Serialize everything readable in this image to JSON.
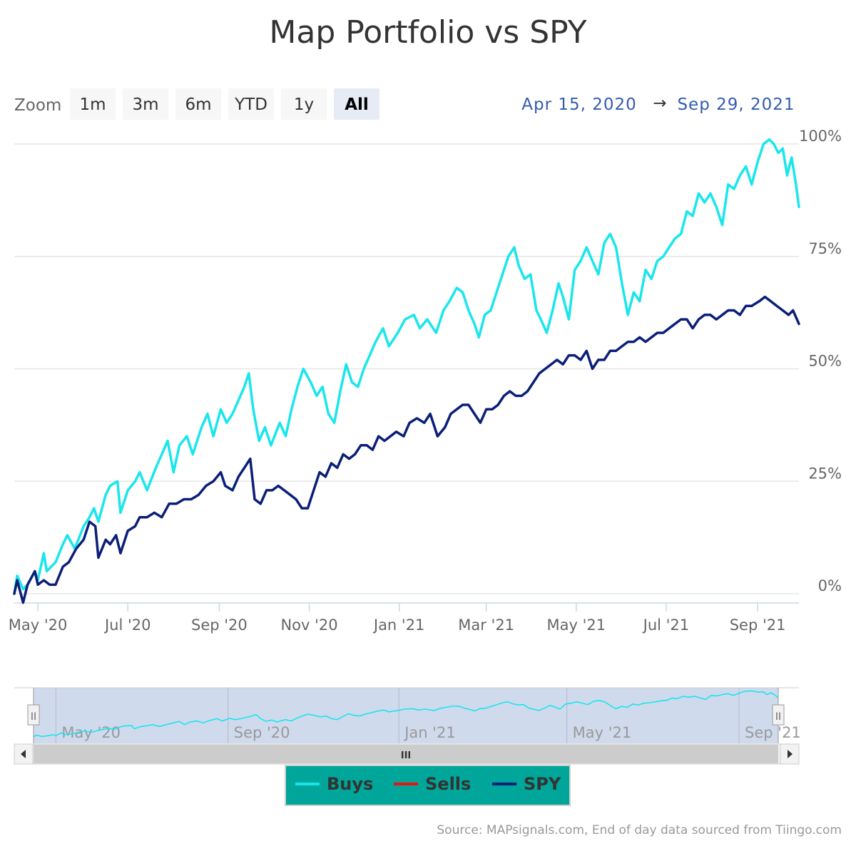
{
  "title": "Map Portfolio vs SPY",
  "range_selector": {
    "zoom_label": "Zoom",
    "buttons": [
      "1m",
      "3m",
      "6m",
      "YTD",
      "1y",
      "All"
    ],
    "active": "All",
    "from_date": "Apr 15, 2020",
    "arrow": "→",
    "to_date": "Sep 29, 2021"
  },
  "navigator": {
    "x_ticks": [
      "May '20",
      "Sep '20",
      "Jan '21",
      "May '21",
      "Sep '21"
    ],
    "scrollbar_grip": "III",
    "left_handle": "II",
    "right_handle": "II"
  },
  "legend": [
    {
      "name": "Buys",
      "color": "#19e6ec"
    },
    {
      "name": "Sells",
      "color": "#ee1111"
    },
    {
      "name": "SPY",
      "color": "#0b1f78"
    }
  ],
  "source_text": "Source: MAPsignals.com, End of day data sourced from Tiingo.com",
  "colors": {
    "buys": "#19e6ec",
    "spy": "#0b1f78",
    "legend_bg": "#00a699",
    "navigator_mask": "#c8d4ea",
    "grid": "#e6e6e6"
  },
  "chart_data": {
    "type": "line",
    "title": "Map Portfolio vs SPY",
    "xlabel": "",
    "ylabel": "",
    "x_range": [
      "2020-04-15",
      "2021-09-29"
    ],
    "ylim": [
      0,
      100
    ],
    "y_ticks": [
      "0%",
      "25%",
      "50%",
      "75%",
      "100%"
    ],
    "x_ticks": [
      "May '20",
      "Jul '20",
      "Sep '20",
      "Nov '20",
      "Jan '21",
      "Mar '21",
      "May '21",
      "Jul '21",
      "Sep '21"
    ],
    "series": [
      {
        "name": "Buys",
        "points": [
          [
            "2020-04-15",
            0
          ],
          [
            "2020-04-17",
            4
          ],
          [
            "2020-04-21",
            1
          ],
          [
            "2020-04-24",
            2
          ],
          [
            "2020-04-29",
            5
          ],
          [
            "2020-05-01",
            3
          ],
          [
            "2020-05-05",
            9
          ],
          [
            "2020-05-07",
            5
          ],
          [
            "2020-05-13",
            7
          ],
          [
            "2020-05-18",
            11
          ],
          [
            "2020-05-21",
            13
          ],
          [
            "2020-05-26",
            10
          ],
          [
            "2020-06-01",
            15
          ],
          [
            "2020-06-05",
            17
          ],
          [
            "2020-06-08",
            19
          ],
          [
            "2020-06-11",
            16
          ],
          [
            "2020-06-16",
            22
          ],
          [
            "2020-06-19",
            24
          ],
          [
            "2020-06-24",
            25
          ],
          [
            "2020-06-26",
            18
          ],
          [
            "2020-07-01",
            23
          ],
          [
            "2020-07-06",
            25
          ],
          [
            "2020-07-09",
            27
          ],
          [
            "2020-07-14",
            23
          ],
          [
            "2020-07-20",
            28
          ],
          [
            "2020-07-24",
            31
          ],
          [
            "2020-07-28",
            34
          ],
          [
            "2020-08-01",
            27
          ],
          [
            "2020-08-05",
            33
          ],
          [
            "2020-08-10",
            35
          ],
          [
            "2020-08-14",
            31
          ],
          [
            "2020-08-20",
            37
          ],
          [
            "2020-08-24",
            40
          ],
          [
            "2020-08-28",
            35
          ],
          [
            "2020-09-02",
            41
          ],
          [
            "2020-09-06",
            38
          ],
          [
            "2020-09-10",
            40
          ],
          [
            "2020-09-14",
            43
          ],
          [
            "2020-09-18",
            46
          ],
          [
            "2020-09-21",
            49
          ],
          [
            "2020-09-24",
            41
          ],
          [
            "2020-09-28",
            34
          ],
          [
            "2020-10-02",
            37
          ],
          [
            "2020-10-06",
            33
          ],
          [
            "2020-10-12",
            38
          ],
          [
            "2020-10-16",
            35
          ],
          [
            "2020-10-20",
            41
          ],
          [
            "2020-10-24",
            46
          ],
          [
            "2020-10-28",
            50
          ],
          [
            "2020-11-02",
            47
          ],
          [
            "2020-11-06",
            44
          ],
          [
            "2020-11-10",
            46
          ],
          [
            "2020-11-14",
            40
          ],
          [
            "2020-11-18",
            38
          ],
          [
            "2020-11-22",
            45
          ],
          [
            "2020-11-26",
            51
          ],
          [
            "2020-11-30",
            47
          ],
          [
            "2020-12-04",
            46
          ],
          [
            "2020-12-08",
            50
          ],
          [
            "2020-12-12",
            53
          ],
          [
            "2020-12-16",
            56
          ],
          [
            "2020-12-21",
            59
          ],
          [
            "2020-12-25",
            55
          ],
          [
            "2020-12-31",
            58
          ],
          [
            "2021-01-05",
            61
          ],
          [
            "2021-01-11",
            62
          ],
          [
            "2021-01-15",
            59
          ],
          [
            "2021-01-20",
            61
          ],
          [
            "2021-01-26",
            58
          ],
          [
            "2021-01-31",
            63
          ],
          [
            "2021-02-04",
            65
          ],
          [
            "2021-02-09",
            68
          ],
          [
            "2021-02-13",
            67
          ],
          [
            "2021-02-17",
            63
          ],
          [
            "2021-02-21",
            60
          ],
          [
            "2021-02-24",
            57
          ],
          [
            "2021-02-28",
            62
          ],
          [
            "2021-03-04",
            63
          ],
          [
            "2021-03-08",
            67
          ],
          [
            "2021-03-12",
            71
          ],
          [
            "2021-03-16",
            75
          ],
          [
            "2021-03-20",
            77
          ],
          [
            "2021-03-23",
            73
          ],
          [
            "2021-03-27",
            70
          ],
          [
            "2021-03-31",
            71
          ],
          [
            "2021-04-04",
            63
          ],
          [
            "2021-04-07",
            61
          ],
          [
            "2021-04-11",
            58
          ],
          [
            "2021-04-15",
            63
          ],
          [
            "2021-04-19",
            69
          ],
          [
            "2021-04-22",
            66
          ],
          [
            "2021-04-26",
            61
          ],
          [
            "2021-04-30",
            72
          ],
          [
            "2021-05-04",
            74
          ],
          [
            "2021-05-08",
            77
          ],
          [
            "2021-05-12",
            74
          ],
          [
            "2021-05-16",
            71
          ],
          [
            "2021-05-20",
            78
          ],
          [
            "2021-05-24",
            80
          ],
          [
            "2021-05-28",
            77
          ],
          [
            "2021-06-01",
            69
          ],
          [
            "2021-06-05",
            62
          ],
          [
            "2021-06-09",
            67
          ],
          [
            "2021-06-13",
            65
          ],
          [
            "2021-06-17",
            72
          ],
          [
            "2021-06-21",
            70
          ],
          [
            "2021-06-25",
            74
          ],
          [
            "2021-06-29",
            75
          ],
          [
            "2021-07-03",
            77
          ],
          [
            "2021-07-07",
            79
          ],
          [
            "2021-07-11",
            80
          ],
          [
            "2021-07-15",
            85
          ],
          [
            "2021-07-19",
            84
          ],
          [
            "2021-07-23",
            89
          ],
          [
            "2021-07-27",
            87
          ],
          [
            "2021-07-31",
            89
          ],
          [
            "2021-08-04",
            86
          ],
          [
            "2021-08-08",
            82
          ],
          [
            "2021-08-12",
            91
          ],
          [
            "2021-08-16",
            90
          ],
          [
            "2021-08-20",
            93
          ],
          [
            "2021-08-24",
            95
          ],
          [
            "2021-08-28",
            91
          ],
          [
            "2021-09-01",
            96
          ],
          [
            "2021-09-05",
            100
          ],
          [
            "2021-09-09",
            101
          ],
          [
            "2021-09-12",
            100
          ],
          [
            "2021-09-15",
            98
          ],
          [
            "2021-09-18",
            99
          ],
          [
            "2021-09-21",
            93
          ],
          [
            "2021-09-24",
            97
          ],
          [
            "2021-09-27",
            91
          ],
          [
            "2021-09-29",
            86
          ]
        ]
      },
      {
        "name": "SPY",
        "points": [
          [
            "2020-04-15",
            0
          ],
          [
            "2020-04-17",
            3
          ],
          [
            "2020-04-21",
            -2
          ],
          [
            "2020-04-24",
            2
          ],
          [
            "2020-04-29",
            5
          ],
          [
            "2020-05-01",
            2
          ],
          [
            "2020-05-05",
            3
          ],
          [
            "2020-05-09",
            2
          ],
          [
            "2020-05-13",
            2
          ],
          [
            "2020-05-18",
            6
          ],
          [
            "2020-05-22",
            7
          ],
          [
            "2020-05-27",
            10
          ],
          [
            "2020-06-01",
            12
          ],
          [
            "2020-06-05",
            16
          ],
          [
            "2020-06-09",
            15
          ],
          [
            "2020-06-11",
            8
          ],
          [
            "2020-06-16",
            12
          ],
          [
            "2020-06-19",
            11
          ],
          [
            "2020-06-23",
            13
          ],
          [
            "2020-06-26",
            9
          ],
          [
            "2020-07-01",
            14
          ],
          [
            "2020-07-06",
            15
          ],
          [
            "2020-07-09",
            17
          ],
          [
            "2020-07-14",
            17
          ],
          [
            "2020-07-19",
            18
          ],
          [
            "2020-07-24",
            17
          ],
          [
            "2020-07-29",
            20
          ],
          [
            "2020-08-03",
            20
          ],
          [
            "2020-08-08",
            21
          ],
          [
            "2020-08-13",
            21
          ],
          [
            "2020-08-18",
            22
          ],
          [
            "2020-08-23",
            24
          ],
          [
            "2020-08-28",
            25
          ],
          [
            "2020-09-02",
            27
          ],
          [
            "2020-09-05",
            24
          ],
          [
            "2020-09-10",
            23
          ],
          [
            "2020-09-14",
            26
          ],
          [
            "2020-09-18",
            28
          ],
          [
            "2020-09-22",
            30
          ],
          [
            "2020-09-25",
            21
          ],
          [
            "2020-09-29",
            20
          ],
          [
            "2020-10-03",
            23
          ],
          [
            "2020-10-07",
            23
          ],
          [
            "2020-10-11",
            24
          ],
          [
            "2020-10-15",
            23
          ],
          [
            "2020-10-19",
            22
          ],
          [
            "2020-10-23",
            21
          ],
          [
            "2020-10-27",
            19
          ],
          [
            "2020-10-31",
            19
          ],
          [
            "2020-11-04",
            23
          ],
          [
            "2020-11-08",
            27
          ],
          [
            "2020-11-12",
            26
          ],
          [
            "2020-11-16",
            29
          ],
          [
            "2020-11-20",
            28
          ],
          [
            "2020-11-24",
            31
          ],
          [
            "2020-11-28",
            30
          ],
          [
            "2020-12-02",
            31
          ],
          [
            "2020-12-06",
            33
          ],
          [
            "2020-12-10",
            33
          ],
          [
            "2020-12-14",
            32
          ],
          [
            "2020-12-18",
            35
          ],
          [
            "2020-12-22",
            34
          ],
          [
            "2020-12-26",
            35
          ],
          [
            "2020-12-30",
            36
          ],
          [
            "2021-01-04",
            35
          ],
          [
            "2021-01-08",
            38
          ],
          [
            "2021-01-13",
            39
          ],
          [
            "2021-01-18",
            38
          ],
          [
            "2021-01-22",
            40
          ],
          [
            "2021-01-27",
            35
          ],
          [
            "2021-02-01",
            37
          ],
          [
            "2021-02-05",
            40
          ],
          [
            "2021-02-09",
            41
          ],
          [
            "2021-02-13",
            42
          ],
          [
            "2021-02-17",
            42
          ],
          [
            "2021-02-21",
            40
          ],
          [
            "2021-02-25",
            38
          ],
          [
            "2021-03-01",
            41
          ],
          [
            "2021-03-05",
            41
          ],
          [
            "2021-03-09",
            42
          ],
          [
            "2021-03-13",
            44
          ],
          [
            "2021-03-17",
            45
          ],
          [
            "2021-03-21",
            44
          ],
          [
            "2021-03-25",
            44
          ],
          [
            "2021-03-29",
            45
          ],
          [
            "2021-04-02",
            47
          ],
          [
            "2021-04-06",
            49
          ],
          [
            "2021-04-10",
            50
          ],
          [
            "2021-04-14",
            51
          ],
          [
            "2021-04-18",
            52
          ],
          [
            "2021-04-22",
            51
          ],
          [
            "2021-04-26",
            53
          ],
          [
            "2021-04-30",
            53
          ],
          [
            "2021-05-04",
            52
          ],
          [
            "2021-05-08",
            54
          ],
          [
            "2021-05-12",
            50
          ],
          [
            "2021-05-16",
            52
          ],
          [
            "2021-05-20",
            52
          ],
          [
            "2021-05-24",
            54
          ],
          [
            "2021-05-28",
            54
          ],
          [
            "2021-06-01",
            55
          ],
          [
            "2021-06-05",
            56
          ],
          [
            "2021-06-09",
            56
          ],
          [
            "2021-06-13",
            57
          ],
          [
            "2021-06-17",
            56
          ],
          [
            "2021-06-21",
            57
          ],
          [
            "2021-06-25",
            58
          ],
          [
            "2021-06-29",
            58
          ],
          [
            "2021-07-03",
            59
          ],
          [
            "2021-07-07",
            60
          ],
          [
            "2021-07-11",
            61
          ],
          [
            "2021-07-15",
            61
          ],
          [
            "2021-07-19",
            59
          ],
          [
            "2021-07-23",
            61
          ],
          [
            "2021-07-27",
            62
          ],
          [
            "2021-07-31",
            62
          ],
          [
            "2021-08-04",
            61
          ],
          [
            "2021-08-08",
            62
          ],
          [
            "2021-08-12",
            63
          ],
          [
            "2021-08-16",
            63
          ],
          [
            "2021-08-20",
            62
          ],
          [
            "2021-08-24",
            64
          ],
          [
            "2021-08-28",
            64
          ],
          [
            "2021-09-02",
            65
          ],
          [
            "2021-09-06",
            66
          ],
          [
            "2021-09-10",
            65
          ],
          [
            "2021-09-14",
            64
          ],
          [
            "2021-09-18",
            63
          ],
          [
            "2021-09-22",
            62
          ],
          [
            "2021-09-25",
            63
          ],
          [
            "2021-09-29",
            60
          ]
        ]
      },
      {
        "name": "Sells",
        "points": []
      }
    ]
  }
}
